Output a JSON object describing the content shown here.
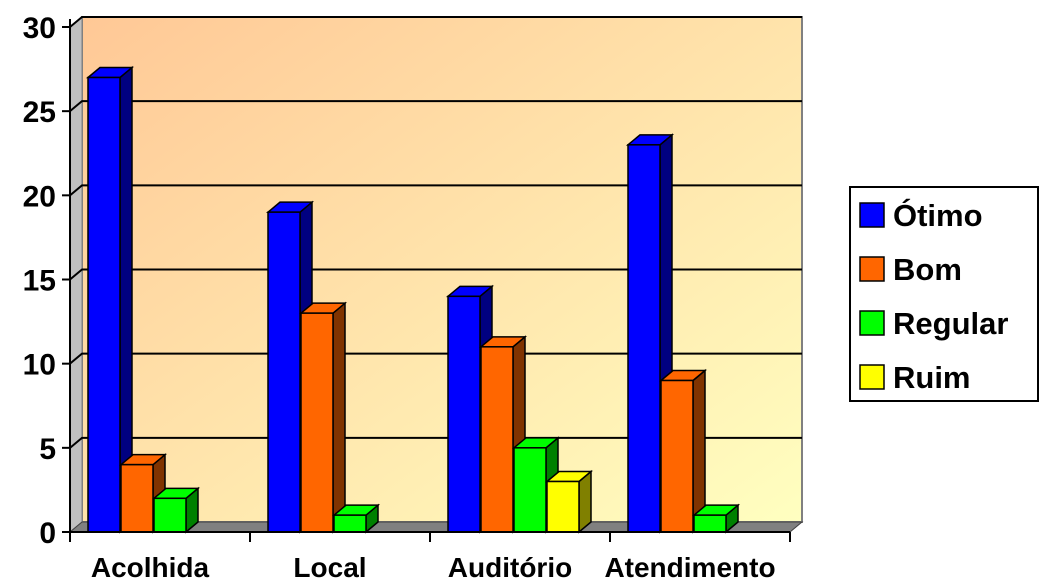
{
  "chart_data": {
    "type": "bar",
    "title": "",
    "xlabel": "",
    "ylabel": "",
    "ylim": [
      0,
      30
    ],
    "y_ticks": [
      "0",
      "5",
      "10",
      "15",
      "20",
      "25",
      "30"
    ],
    "categories": [
      "Acolhida",
      "Local",
      "Auditório",
      "Atendimento"
    ],
    "series": [
      {
        "name": "Ótimo",
        "values": [
          27,
          19,
          14,
          23
        ],
        "color": "#0000ff",
        "side_color": "#000080"
      },
      {
        "name": "Bom",
        "values": [
          4,
          13,
          11,
          9
        ],
        "color": "#ff6600",
        "side_color": "#803300"
      },
      {
        "name": "Regular",
        "values": [
          2,
          1,
          5,
          1
        ],
        "color": "#00ff00",
        "side_color": "#008000"
      },
      {
        "name": "Ruim",
        "values": [
          0,
          0,
          3,
          0
        ],
        "color": "#ffff00",
        "side_color": "#808000"
      }
    ],
    "grid": true,
    "legend_position": "right",
    "background_gradient": [
      "#ffc896",
      "#ffffc0"
    ]
  }
}
